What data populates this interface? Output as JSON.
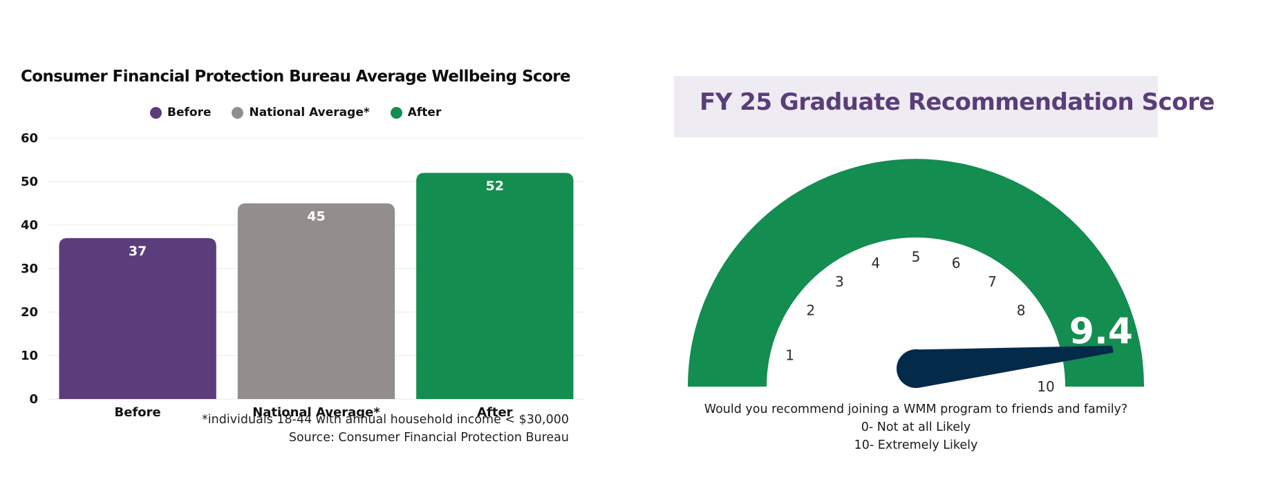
{
  "chart_data": [
    {
      "type": "bar",
      "title": "Consumer Financial Protection Bureau Average Wellbeing Score",
      "categories": [
        "Before",
        "National Average*",
        "After"
      ],
      "values": [
        37,
        45,
        52
      ],
      "colors": [
        "#5b3d7c",
        "#948d8d",
        "#138d50"
      ],
      "legend": [
        "Before",
        "National Average*",
        "After"
      ],
      "legend_position": "top",
      "ylim": [
        0,
        60
      ],
      "yticks": [
        0,
        10,
        20,
        30,
        40,
        50,
        60
      ],
      "grid": true,
      "data_labels": true,
      "footnotes": [
        "*individuals 18-44 with annual household income < $30,000",
        "Source: Consumer Financial Protection Bureau"
      ]
    },
    {
      "type": "gauge",
      "title": "FY 25 Graduate Recommendation Score",
      "value": 9.4,
      "value_label": "9.4",
      "scale_labels": [
        "1",
        "2",
        "3",
        "4",
        "5",
        "6",
        "7",
        "8",
        "10"
      ],
      "range": [
        0,
        10
      ],
      "arc_color": "#138d50",
      "needle_color": "#042a4a",
      "question_lines": [
        "Would you recommend joining a WMM program to friends and family?",
        "0- Not at all Likely",
        "10- Extremely Likely"
      ]
    }
  ]
}
